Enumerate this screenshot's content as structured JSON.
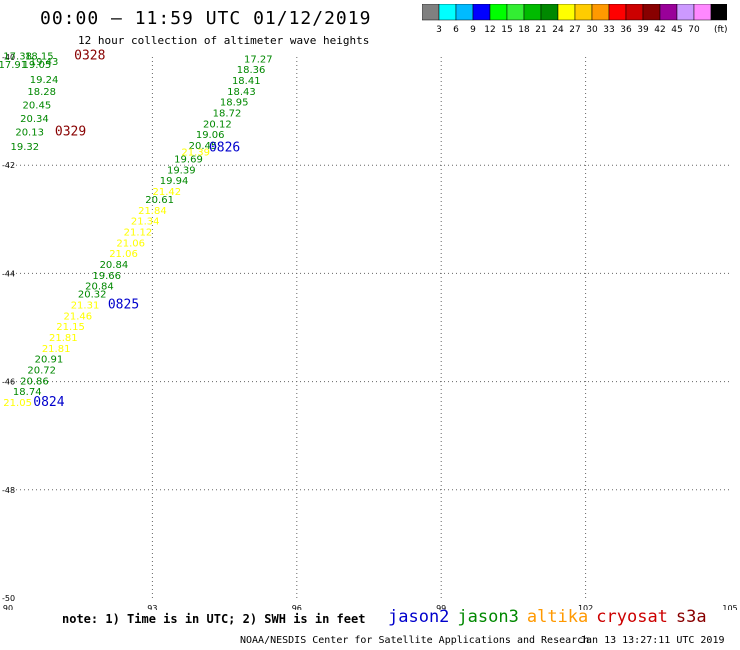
{
  "header": {
    "title": "00:00 – 11:59 UTC 01/12/2019",
    "subtitle": "12 hour collection of altimeter wave heights"
  },
  "legend": {
    "unit": "(ft)",
    "bins": [
      {
        "label": "",
        "color": "#808080"
      },
      {
        "label": "3",
        "color": "#00ffff"
      },
      {
        "label": "6",
        "color": "#00bbff"
      },
      {
        "label": "9",
        "color": "#0000ff"
      },
      {
        "label": "12",
        "color": "#00ff00"
      },
      {
        "label": "15",
        "color": "#33ee33"
      },
      {
        "label": "18",
        "color": "#00bb00"
      },
      {
        "label": "21",
        "color": "#008800"
      },
      {
        "label": "24",
        "color": "#ffff00"
      },
      {
        "label": "27",
        "color": "#ffcc00"
      },
      {
        "label": "30",
        "color": "#ff9900"
      },
      {
        "label": "33",
        "color": "#ff0000"
      },
      {
        "label": "36",
        "color": "#cc0000"
      },
      {
        "label": "39",
        "color": "#880000"
      },
      {
        "label": "42",
        "color": "#990099"
      },
      {
        "label": "45",
        "color": "#cc99ff"
      },
      {
        "label": "70",
        "color": "#ff88ff"
      },
      {
        "label": "",
        "color": "#000000"
      }
    ]
  },
  "map": {
    "lon_min": 90,
    "lon_max": 105,
    "lat_min": -50,
    "lat_max": -40,
    "x_ticks": [
      {
        "lon": 90,
        "label": "90"
      },
      {
        "lon": 93,
        "label": "93"
      },
      {
        "lon": 96,
        "label": "96"
      },
      {
        "lon": 99,
        "label": "99"
      },
      {
        "lon": 102,
        "label": "102"
      },
      {
        "lon": 105,
        "label": "105"
      }
    ],
    "y_ticks": [
      {
        "lat": -40,
        "label": "-40"
      },
      {
        "lat": -42,
        "label": "-42"
      },
      {
        "lat": -44,
        "label": "-44"
      },
      {
        "lat": -46,
        "label": "-46"
      },
      {
        "lat": -48,
        "label": "-48"
      },
      {
        "lat": -50,
        "label": "-50"
      }
    ]
  },
  "colors": {
    "green": "#008800",
    "yellow": "#ffff00",
    "blue": "#0000cc",
    "darkred": "#880000",
    "grid": "#666666"
  },
  "tracks": [
    {
      "name": "track-a",
      "points": [
        {
          "lon": 90.2,
          "lat": -40.05,
          "swh": "17.38",
          "color": "green"
        },
        {
          "lon": 90.65,
          "lat": -40.05,
          "swh": "18.15",
          "color": "green"
        },
        {
          "lon": 90.1,
          "lat": -40.2,
          "swh": "17.91",
          "color": "green"
        },
        {
          "lon": 90.6,
          "lat": -40.2,
          "swh": "19.05",
          "color": "green"
        },
        {
          "lon": 90.75,
          "lat": -40.15,
          "swh": "19.43",
          "color": "green"
        },
        {
          "lon": 90.75,
          "lat": -40.48,
          "swh": "19.24",
          "color": "green"
        },
        {
          "lon": 90.7,
          "lat": -40.7,
          "swh": "18.28",
          "color": "green"
        },
        {
          "lon": 90.6,
          "lat": -40.95,
          "swh": "20.45",
          "color": "green"
        },
        {
          "lon": 90.55,
          "lat": -41.2,
          "swh": "20.34",
          "color": "green"
        },
        {
          "lon": 90.45,
          "lat": -41.45,
          "swh": "20.13",
          "color": "green"
        },
        {
          "lon": 90.35,
          "lat": -41.72,
          "swh": "19.32",
          "color": "green"
        }
      ]
    },
    {
      "name": "track-b",
      "points": [
        {
          "lon": 95.2,
          "lat": -40.1,
          "swh": "17.27",
          "color": "green"
        },
        {
          "lon": 95.05,
          "lat": -40.3,
          "swh": "18.36",
          "color": "green"
        },
        {
          "lon": 94.95,
          "lat": -40.5,
          "swh": "18.41",
          "color": "green"
        },
        {
          "lon": 94.85,
          "lat": -40.7,
          "swh": "18.43",
          "color": "green"
        },
        {
          "lon": 94.7,
          "lat": -40.9,
          "swh": "18.95",
          "color": "green"
        },
        {
          "lon": 94.55,
          "lat": -41.1,
          "swh": "18.72",
          "color": "green"
        },
        {
          "lon": 94.35,
          "lat": -41.3,
          "swh": "20.12",
          "color": "green"
        },
        {
          "lon": 94.2,
          "lat": -41.5,
          "swh": "19.06",
          "color": "green"
        },
        {
          "lon": 94.05,
          "lat": -41.7,
          "swh": "20.45",
          "color": "green"
        },
        {
          "lon": 93.9,
          "lat": -41.82,
          "swh": "21.39",
          "color": "yellow"
        },
        {
          "lon": 93.75,
          "lat": -41.95,
          "swh": "19.69",
          "color": "green"
        },
        {
          "lon": 93.6,
          "lat": -42.15,
          "swh": "19.39",
          "color": "green"
        },
        {
          "lon": 93.45,
          "lat": -42.35,
          "swh": "19.94",
          "color": "green"
        },
        {
          "lon": 93.3,
          "lat": -42.55,
          "swh": "21.42",
          "color": "yellow"
        },
        {
          "lon": 93.15,
          "lat": -42.7,
          "swh": "20.61",
          "color": "green"
        },
        {
          "lon": 93.0,
          "lat": -42.9,
          "swh": "21.84",
          "color": "yellow"
        },
        {
          "lon": 92.85,
          "lat": -43.1,
          "swh": "21.34",
          "color": "yellow"
        },
        {
          "lon": 92.7,
          "lat": -43.3,
          "swh": "21.12",
          "color": "yellow"
        },
        {
          "lon": 92.55,
          "lat": -43.5,
          "swh": "21.06",
          "color": "yellow"
        },
        {
          "lon": 92.4,
          "lat": -43.7,
          "swh": "21.06",
          "color": "yellow"
        },
        {
          "lon": 92.2,
          "lat": -43.9,
          "swh": "20.84",
          "color": "green"
        },
        {
          "lon": 92.05,
          "lat": -44.1,
          "swh": "19.66",
          "color": "green"
        },
        {
          "lon": 91.9,
          "lat": -44.3,
          "swh": "20.84",
          "color": "green"
        },
        {
          "lon": 91.75,
          "lat": -44.45,
          "swh": "20.32",
          "color": "green"
        },
        {
          "lon": 91.6,
          "lat": -44.65,
          "swh": "21.31",
          "color": "yellow"
        },
        {
          "lon": 91.45,
          "lat": -44.85,
          "swh": "21.46",
          "color": "yellow"
        },
        {
          "lon": 91.3,
          "lat": -45.05,
          "swh": "21.15",
          "color": "yellow"
        },
        {
          "lon": 91.15,
          "lat": -45.25,
          "swh": "21.81",
          "color": "yellow"
        },
        {
          "lon": 91.0,
          "lat": -45.45,
          "swh": "21.81",
          "color": "yellow"
        },
        {
          "lon": 90.85,
          "lat": -45.65,
          "swh": "20.91",
          "color": "green"
        },
        {
          "lon": 90.7,
          "lat": -45.85,
          "swh": "20.72",
          "color": "green"
        },
        {
          "lon": 90.55,
          "lat": -46.05,
          "swh": "20.86",
          "color": "green"
        },
        {
          "lon": 90.4,
          "lat": -46.25,
          "swh": "18.74",
          "color": "green"
        },
        {
          "lon": 90.2,
          "lat": -46.45,
          "swh": "21.05",
          "color": "yellow"
        }
      ]
    }
  ],
  "time_labels": [
    {
      "text": "0328",
      "lon": 91.7,
      "lat": -40.05,
      "color": "darkred"
    },
    {
      "text": "0329",
      "lon": 91.3,
      "lat": -41.45,
      "color": "darkred"
    },
    {
      "text": "0826",
      "lon": 94.5,
      "lat": -41.75,
      "color": "blue"
    },
    {
      "text": "0825",
      "lon": 92.4,
      "lat": -44.65,
      "color": "blue"
    },
    {
      "text": "0824",
      "lon": 90.85,
      "lat": -46.45,
      "color": "blue"
    }
  ],
  "footer": {
    "note": "note: 1) Time is in UTC; 2) SWH is in feet",
    "satellites": [
      {
        "name": "jason2",
        "color": "#0000cc"
      },
      {
        "name": "jason3",
        "color": "#008800"
      },
      {
        "name": "altika",
        "color": "#ff9900"
      },
      {
        "name": "cryosat",
        "color": "#cc0000"
      },
      {
        "name": "s3a",
        "color": "#880000"
      }
    ],
    "credit": "NOAA/NESDIS Center for Satellite Applications and Research",
    "timestamp": "Jan 13 13:27:11 UTC 2019"
  }
}
